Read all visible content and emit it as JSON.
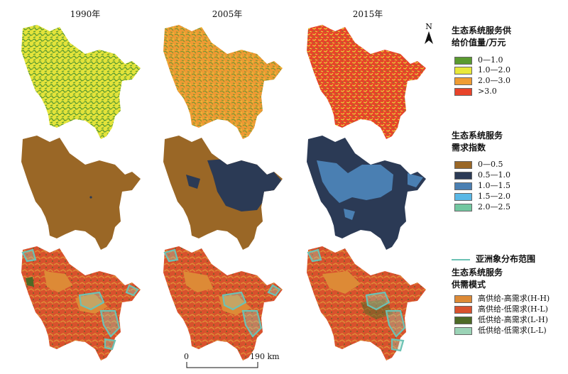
{
  "years": [
    "1990年",
    "2005年",
    "2015年"
  ],
  "north": "N",
  "supply": {
    "title_line1": "生态系统服务供",
    "title_line2": "给价值量/万元",
    "items": [
      {
        "label": "0—1.0",
        "color": "#5a9a2f"
      },
      {
        "label": "1.0—2.0",
        "color": "#e8e83a"
      },
      {
        "label": "2.0—3.0",
        "color": "#ef9c33"
      },
      {
        "label": ">3.0",
        "color": "#e8432a"
      }
    ]
  },
  "demand": {
    "title_line1": "生态系统服务",
    "title_line2": "需求指数",
    "items": [
      {
        "label": "0—0.5",
        "color": "#9a6726"
      },
      {
        "label": "0.5—1.0",
        "color": "#2b3a55"
      },
      {
        "label": "1.0—1.5",
        "color": "#4a7fb2"
      },
      {
        "label": "1.5—2.0",
        "color": "#5ab8e6"
      },
      {
        "label": "2.0—2.5",
        "color": "#72c7a0"
      }
    ]
  },
  "range_label": "亚洲象分布范围",
  "range_color": "#6cc2b4",
  "mode": {
    "title_line1": "生态系统服务",
    "title_line2": "供需模式",
    "items": [
      {
        "label": "高供给-高需求(H-H)",
        "color": "#dd8a36"
      },
      {
        "label": "高供给-低需求(H-L)",
        "color": "#d8512d"
      },
      {
        "label": "低供给-高需求(L-H)",
        "color": "#4d6a26"
      },
      {
        "label": "低供给-低需求(L-L)",
        "color": "#9bd3b6"
      }
    ]
  },
  "scale": {
    "start": "0",
    "end": "190 km"
  }
}
